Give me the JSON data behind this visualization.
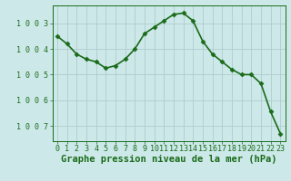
{
  "x": [
    0,
    1,
    2,
    3,
    4,
    5,
    6,
    7,
    8,
    9,
    10,
    11,
    12,
    13,
    14,
    15,
    16,
    17,
    18,
    19,
    20,
    21,
    22,
    23
  ],
  "y": [
    1006.5,
    1006.2,
    1005.8,
    1005.6,
    1005.5,
    1005.25,
    1005.35,
    1005.6,
    1006.0,
    1006.6,
    1006.85,
    1007.1,
    1007.35,
    1007.4,
    1007.1,
    1006.3,
    1005.8,
    1005.5,
    1005.2,
    1005.0,
    1005.0,
    1004.65,
    1003.55,
    1002.7
  ],
  "line_color": "#1a6b1a",
  "marker": "D",
  "marker_size": 2.5,
  "bg_color": "#cce8e8",
  "grid_color": "#b0cccc",
  "xlabel": "Graphe pression niveau de la mer (hPa)",
  "xlabel_fontsize": 7.5,
  "ylim": [
    1002.4,
    1007.7
  ],
  "yticks": [
    1003,
    1004,
    1005,
    1006,
    1007
  ],
  "xtick_labels": [
    "0",
    "1",
    "2",
    "3",
    "4",
    "5",
    "6",
    "7",
    "8",
    "9",
    "10",
    "11",
    "12",
    "13",
    "14",
    "15",
    "16",
    "17",
    "18",
    "19",
    "20",
    "21",
    "22",
    "23"
  ],
  "tick_fontsize": 6.0,
  "line_width": 1.2
}
